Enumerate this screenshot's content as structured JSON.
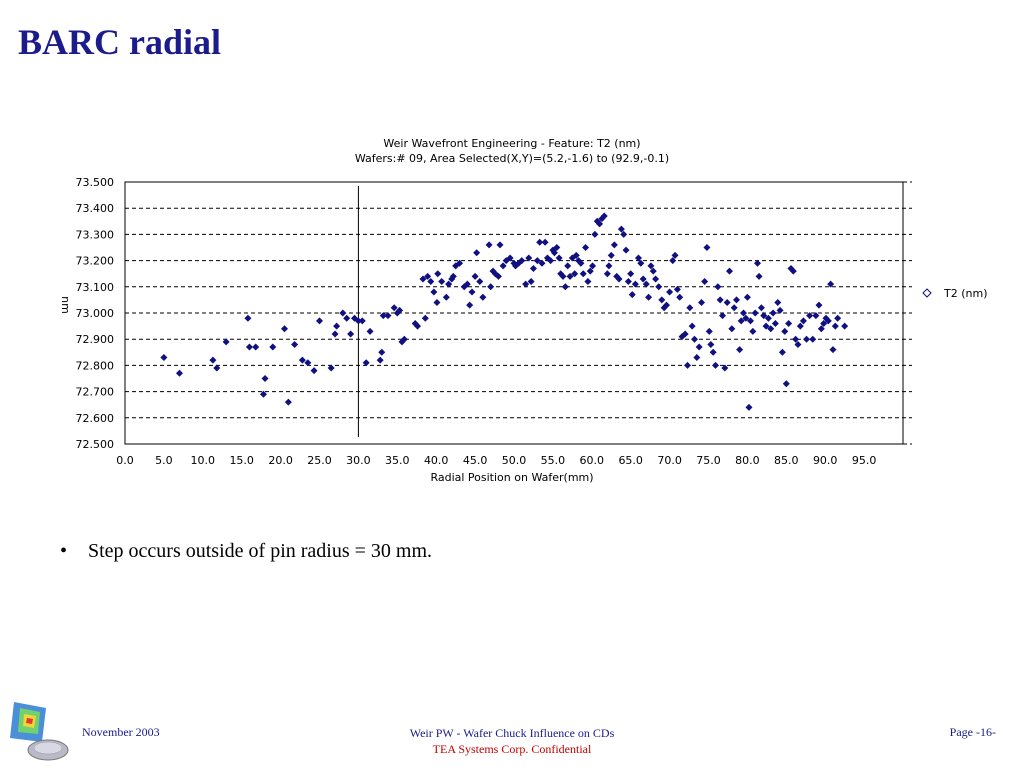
{
  "slide": {
    "title": "BARC radial",
    "bullet": "Step occurs outside of pin radius = 30 mm."
  },
  "footer": {
    "date": "November 2003",
    "center_line1": "Weir PW - Wafer Chuck Influence on CDs",
    "center_line2": "TEA Systems Corp. Confidential",
    "page": "Page -16-"
  },
  "colors": {
    "title": "#1b1b8c",
    "points": "#101080",
    "confidential": "#c00000"
  },
  "chart_data": {
    "type": "scatter",
    "title": "Weir Wavefront Engineering - Feature: T2 (nm)",
    "subtitle": "Wafers:# 09, Area Selected(X,Y)=(5.2,-1.6) to (92.9,-0.1)",
    "xlabel": "Radial Position on Wafer(mm)",
    "ylabel": "nm",
    "xlim": [
      0,
      100
    ],
    "ylim": [
      72.5,
      73.5
    ],
    "x_ticks": [
      "0.0",
      "5.0",
      "10.0",
      "15.0",
      "20.0",
      "25.0",
      "30.0",
      "35.0",
      "40.0",
      "45.0",
      "50.0",
      "55.0",
      "60.0",
      "65.0",
      "70.0",
      "75.0",
      "80.0",
      "85.0",
      "90.0",
      "95.0"
    ],
    "y_ticks": [
      "73.500",
      "73.400",
      "73.300",
      "73.200",
      "73.100",
      "73.000",
      "72.900",
      "72.800",
      "72.700",
      "72.600",
      "72.500"
    ],
    "grid": "horizontal dashed",
    "legend_position": "right",
    "marker_line_x": 30,
    "series": [
      {
        "name": "T2 (nm)",
        "points": [
          [
            5.0,
            72.83
          ],
          [
            7.0,
            72.77
          ],
          [
            11.3,
            72.82
          ],
          [
            11.8,
            72.79
          ],
          [
            13.0,
            72.89
          ],
          [
            15.8,
            72.98
          ],
          [
            16.0,
            72.87
          ],
          [
            16.8,
            72.87
          ],
          [
            17.8,
            72.69
          ],
          [
            18.0,
            72.75
          ],
          [
            19.0,
            72.87
          ],
          [
            20.5,
            72.94
          ],
          [
            21.0,
            72.66
          ],
          [
            21.8,
            72.88
          ],
          [
            22.8,
            72.82
          ],
          [
            23.5,
            72.81
          ],
          [
            24.3,
            72.78
          ],
          [
            25.0,
            72.97
          ],
          [
            26.5,
            72.79
          ],
          [
            27.0,
            72.92
          ],
          [
            27.2,
            72.95
          ],
          [
            28.0,
            73.0
          ],
          [
            28.5,
            72.98
          ],
          [
            29.0,
            72.92
          ],
          [
            29.5,
            72.98
          ],
          [
            30.0,
            72.97
          ],
          [
            30.5,
            72.97
          ],
          [
            31.0,
            72.81
          ],
          [
            31.5,
            72.93
          ],
          [
            32.8,
            72.82
          ],
          [
            33.0,
            72.85
          ],
          [
            33.2,
            72.99
          ],
          [
            33.8,
            72.99
          ],
          [
            34.6,
            73.02
          ],
          [
            35.0,
            73.0
          ],
          [
            35.3,
            73.01
          ],
          [
            35.6,
            72.89
          ],
          [
            35.9,
            72.9
          ],
          [
            37.3,
            72.96
          ],
          [
            37.6,
            72.95
          ],
          [
            38.3,
            73.13
          ],
          [
            38.6,
            72.98
          ],
          [
            38.9,
            73.14
          ],
          [
            39.3,
            73.12
          ],
          [
            39.7,
            73.08
          ],
          [
            40.1,
            73.04
          ],
          [
            40.2,
            73.15
          ],
          [
            40.7,
            73.12
          ],
          [
            41.3,
            73.06
          ],
          [
            41.6,
            73.11
          ],
          [
            42.0,
            73.13
          ],
          [
            42.2,
            73.14
          ],
          [
            42.5,
            73.18
          ],
          [
            43.0,
            73.19
          ],
          [
            43.6,
            73.1
          ],
          [
            44.0,
            73.11
          ],
          [
            44.3,
            73.03
          ],
          [
            44.6,
            73.08
          ],
          [
            45.0,
            73.14
          ],
          [
            45.2,
            73.23
          ],
          [
            45.6,
            73.12
          ],
          [
            46.0,
            73.06
          ],
          [
            46.8,
            73.26
          ],
          [
            47.0,
            73.1
          ],
          [
            47.3,
            73.16
          ],
          [
            47.6,
            73.15
          ],
          [
            48.0,
            73.14
          ],
          [
            48.2,
            73.26
          ],
          [
            48.6,
            73.18
          ],
          [
            49.0,
            73.2
          ],
          [
            49.5,
            73.21
          ],
          [
            50.0,
            73.19
          ],
          [
            50.2,
            73.18
          ],
          [
            50.6,
            73.19
          ],
          [
            51.0,
            73.2
          ],
          [
            51.5,
            73.11
          ],
          [
            51.9,
            73.21
          ],
          [
            52.2,
            73.12
          ],
          [
            52.5,
            73.17
          ],
          [
            53.0,
            73.2
          ],
          [
            53.3,
            73.27
          ],
          [
            53.6,
            73.19
          ],
          [
            54.0,
            73.27
          ],
          [
            54.3,
            73.21
          ],
          [
            54.7,
            73.2
          ],
          [
            55.0,
            73.24
          ],
          [
            55.2,
            73.23
          ],
          [
            55.5,
            73.25
          ],
          [
            55.8,
            73.21
          ],
          [
            56.0,
            73.15
          ],
          [
            56.3,
            73.14
          ],
          [
            56.6,
            73.1
          ],
          [
            56.9,
            73.18
          ],
          [
            57.2,
            73.14
          ],
          [
            57.5,
            73.21
          ],
          [
            57.8,
            73.15
          ],
          [
            58.0,
            73.22
          ],
          [
            58.3,
            73.2
          ],
          [
            58.6,
            73.19
          ],
          [
            58.9,
            73.15
          ],
          [
            59.2,
            73.25
          ],
          [
            59.5,
            73.12
          ],
          [
            59.8,
            73.16
          ],
          [
            60.1,
            73.18
          ],
          [
            60.4,
            73.3
          ],
          [
            60.7,
            73.35
          ],
          [
            61.0,
            73.34
          ],
          [
            61.3,
            73.36
          ],
          [
            61.6,
            73.37
          ],
          [
            62.0,
            73.15
          ],
          [
            62.2,
            73.18
          ],
          [
            62.5,
            73.22
          ],
          [
            62.9,
            73.26
          ],
          [
            63.2,
            73.14
          ],
          [
            63.5,
            73.13
          ],
          [
            63.8,
            73.32
          ],
          [
            64.1,
            73.3
          ],
          [
            64.4,
            73.24
          ],
          [
            64.7,
            73.12
          ],
          [
            65.0,
            73.15
          ],
          [
            65.2,
            73.07
          ],
          [
            65.6,
            73.11
          ],
          [
            66.0,
            73.21
          ],
          [
            66.3,
            73.19
          ],
          [
            66.6,
            73.13
          ],
          [
            67.0,
            73.11
          ],
          [
            67.3,
            73.06
          ],
          [
            67.6,
            73.18
          ],
          [
            67.9,
            73.16
          ],
          [
            68.2,
            73.13
          ],
          [
            68.6,
            73.1
          ],
          [
            69.0,
            73.05
          ],
          [
            69.3,
            73.02
          ],
          [
            69.6,
            73.03
          ],
          [
            70.0,
            73.08
          ],
          [
            70.4,
            73.2
          ],
          [
            70.7,
            73.22
          ],
          [
            71.0,
            73.09
          ],
          [
            71.3,
            73.06
          ],
          [
            71.6,
            72.91
          ],
          [
            72.0,
            72.92
          ],
          [
            72.3,
            72.8
          ],
          [
            72.6,
            73.02
          ],
          [
            72.9,
            72.95
          ],
          [
            73.2,
            72.9
          ],
          [
            73.5,
            72.83
          ],
          [
            73.8,
            72.87
          ],
          [
            74.1,
            73.04
          ],
          [
            74.5,
            73.12
          ],
          [
            74.8,
            73.25
          ],
          [
            75.1,
            72.93
          ],
          [
            75.3,
            72.88
          ],
          [
            75.6,
            72.85
          ],
          [
            75.9,
            72.8
          ],
          [
            76.2,
            73.1
          ],
          [
            76.5,
            73.05
          ],
          [
            76.8,
            72.99
          ],
          [
            77.1,
            72.79
          ],
          [
            77.4,
            73.04
          ],
          [
            77.7,
            73.16
          ],
          [
            78.0,
            72.94
          ],
          [
            78.3,
            73.02
          ],
          [
            78.6,
            73.05
          ],
          [
            79.0,
            72.86
          ],
          [
            79.2,
            72.97
          ],
          [
            79.5,
            73.0
          ],
          [
            79.8,
            72.98
          ],
          [
            80.0,
            73.06
          ],
          [
            80.2,
            72.64
          ],
          [
            80.4,
            72.97
          ],
          [
            80.7,
            72.93
          ],
          [
            81.0,
            73.0
          ],
          [
            81.3,
            73.19
          ],
          [
            81.5,
            73.14
          ],
          [
            81.8,
            73.02
          ],
          [
            82.1,
            72.99
          ],
          [
            82.4,
            72.95
          ],
          [
            82.7,
            72.98
          ],
          [
            83.0,
            72.94
          ],
          [
            83.3,
            73.0
          ],
          [
            83.6,
            72.96
          ],
          [
            83.9,
            73.04
          ],
          [
            84.2,
            73.01
          ],
          [
            84.5,
            72.85
          ],
          [
            84.8,
            72.93
          ],
          [
            85.0,
            72.73
          ],
          [
            85.3,
            72.96
          ],
          [
            85.6,
            73.17
          ],
          [
            85.9,
            73.16
          ],
          [
            86.2,
            72.9
          ],
          [
            86.5,
            72.88
          ],
          [
            86.8,
            72.95
          ],
          [
            87.2,
            72.97
          ],
          [
            87.6,
            72.9
          ],
          [
            88.0,
            72.99
          ],
          [
            88.4,
            72.9
          ],
          [
            88.8,
            72.99
          ],
          [
            89.2,
            73.03
          ],
          [
            89.5,
            72.94
          ],
          [
            89.8,
            72.96
          ],
          [
            90.1,
            72.98
          ],
          [
            90.4,
            72.97
          ],
          [
            90.7,
            73.11
          ],
          [
            91.0,
            72.86
          ],
          [
            91.3,
            72.95
          ],
          [
            91.6,
            72.98
          ],
          [
            92.5,
            72.95
          ]
        ]
      }
    ]
  }
}
